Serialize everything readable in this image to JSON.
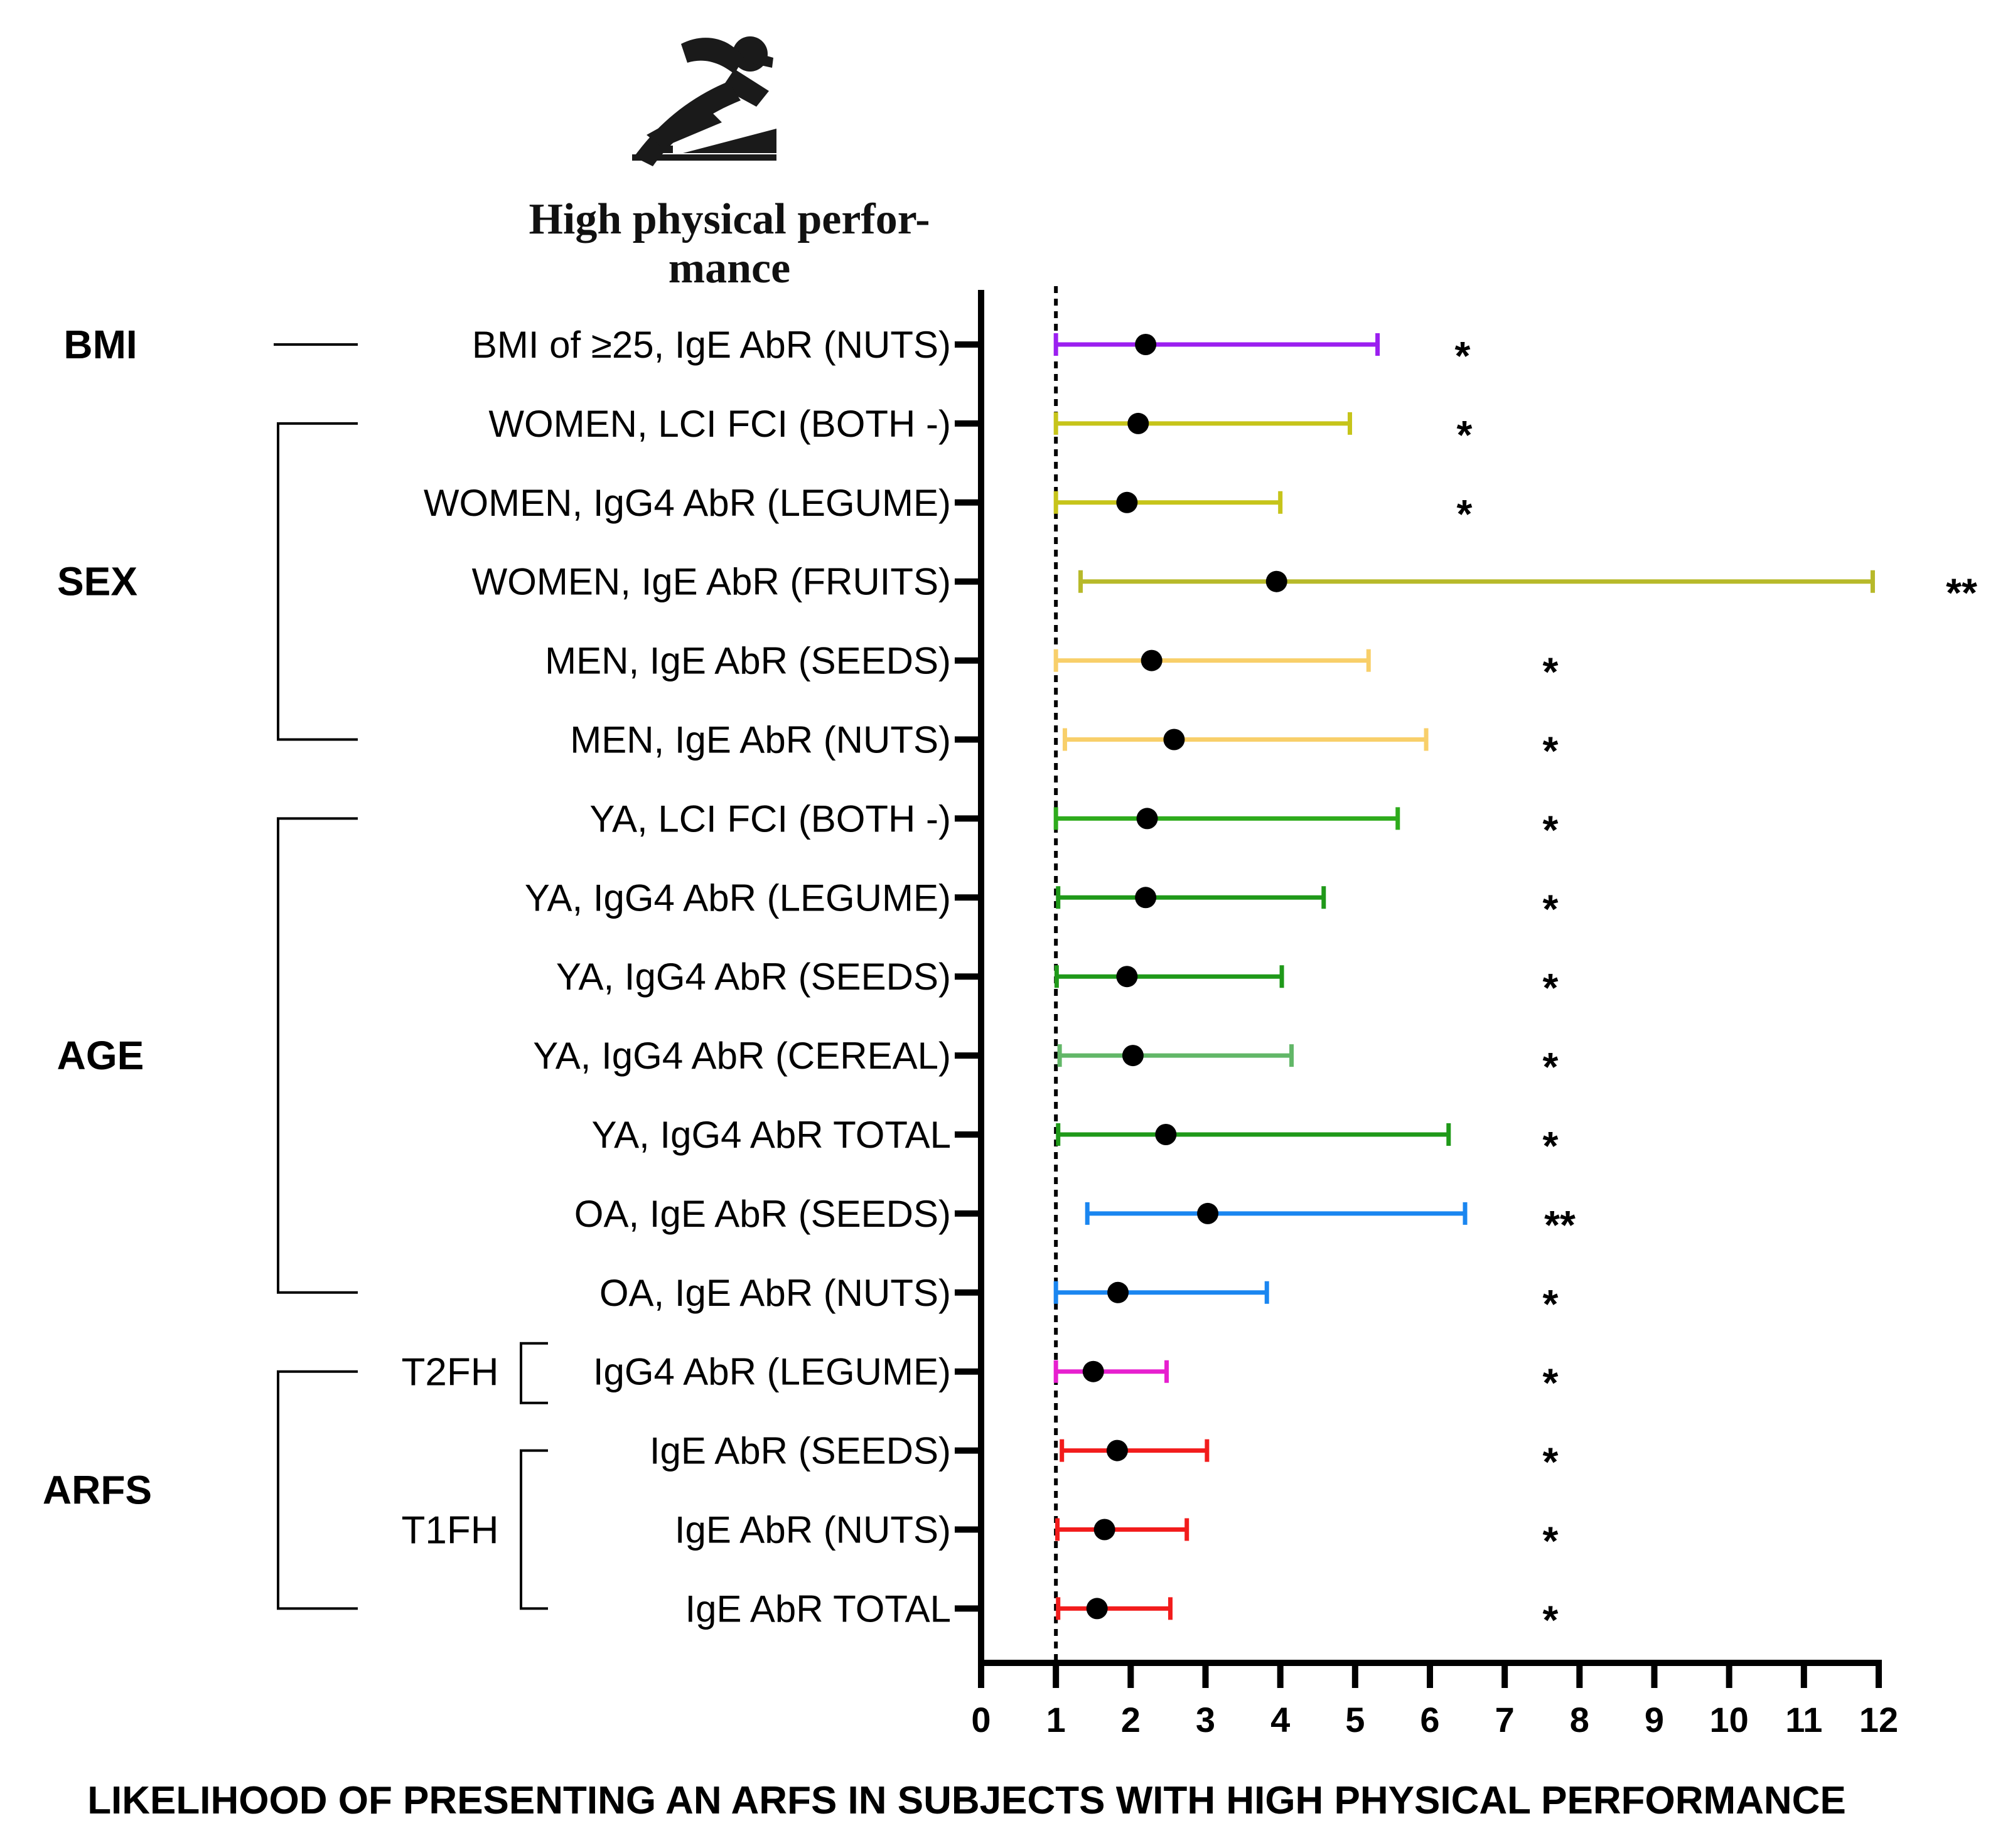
{
  "chart_data": {
    "type": "forest",
    "title": "High physical performance",
    "title_lines": [
      "High physical perfor-",
      "mance"
    ],
    "xlabel": "LIKELIHOOD OF PRESENTING AN ARFS IN SUBJECTS WITH HIGH PHYSICAL PERFORMANCE",
    "xlim": [
      0,
      12
    ],
    "xticks": [
      "0",
      "1",
      "2",
      "3",
      "4",
      "5",
      "6",
      "7",
      "8",
      "9",
      "10",
      "11",
      "12"
    ],
    "reference_line": 1,
    "groups": [
      {
        "label": "BMI",
        "first_row": 0,
        "last_row": 0
      },
      {
        "label": "SEX",
        "first_row": 1,
        "last_row": 5
      },
      {
        "label": "AGE",
        "first_row": 6,
        "last_row": 12
      },
      {
        "label": "ARFS",
        "first_row": 13,
        "last_row": 16
      }
    ],
    "subgroups": [
      {
        "label": "T2FH",
        "first_row": 13,
        "last_row": 13
      },
      {
        "label": "T1FH",
        "first_row": 14,
        "last_row": 16
      }
    ],
    "rows": [
      {
        "label": "BMI of ≥25, IgE AbR (NUTS)",
        "estimate": 2.2,
        "lower": 1.0,
        "upper": 5.3,
        "significance": "*",
        "color": "#9b1ff0"
      },
      {
        "label": "WOMEN, LCI FCI (BOTH -)",
        "estimate": 2.1,
        "lower": 1.0,
        "upper": 4.93,
        "significance": "*",
        "color": "#c6c41a"
      },
      {
        "label": "WOMEN, IgG4 AbR (LEGUME)",
        "estimate": 1.95,
        "lower": 1.0,
        "upper": 4.0,
        "significance": "*",
        "color": "#c6c41a"
      },
      {
        "label": "WOMEN, IgE AbR (FRUITS)",
        "estimate": 3.95,
        "lower": 1.33,
        "upper": 11.92,
        "significance": "**",
        "color": "#b7b92a"
      },
      {
        "label": "MEN, IgE AbR (SEEDS)",
        "estimate": 2.28,
        "lower": 1.0,
        "upper": 5.18,
        "significance": "*",
        "color": "#f8cf6a"
      },
      {
        "label": "MEN, IgE AbR (NUTS)",
        "estimate": 2.58,
        "lower": 1.12,
        "upper": 5.95,
        "significance": "*",
        "color": "#f8cf6a"
      },
      {
        "label": "YA, LCI FCI (BOTH -)",
        "estimate": 2.22,
        "lower": 1.0,
        "upper": 5.57,
        "significance": "*",
        "color": "#2eab1c"
      },
      {
        "label": "YA, IgG4 AbR (LEGUME)",
        "estimate": 2.2,
        "lower": 1.03,
        "upper": 4.58,
        "significance": "*",
        "color": "#1f9919"
      },
      {
        "label": "YA, IgG4 AbR (SEEDS)",
        "estimate": 1.95,
        "lower": 1.01,
        "upper": 4.02,
        "significance": "*",
        "color": "#1f9919"
      },
      {
        "label": "YA, IgG4 AbR (CEREAL)",
        "estimate": 2.03,
        "lower": 1.05,
        "upper": 4.15,
        "significance": "*",
        "color": "#62b768"
      },
      {
        "label": "YA, IgG4 AbR TOTAL",
        "estimate": 2.47,
        "lower": 1.03,
        "upper": 6.25,
        "significance": "*",
        "color": "#1f9919"
      },
      {
        "label": "OA, IgE AbR (SEEDS)",
        "estimate": 3.03,
        "lower": 1.42,
        "upper": 6.47,
        "significance": "**",
        "color": "#1a86f0"
      },
      {
        "label": "OA, IgE AbR (NUTS)",
        "estimate": 1.83,
        "lower": 1.0,
        "upper": 3.82,
        "significance": "*",
        "color": "#1a86f0"
      },
      {
        "label": "IgG4 AbR (LEGUME)",
        "estimate": 1.5,
        "lower": 1.0,
        "upper": 2.48,
        "significance": "*",
        "color": "#e71fcf"
      },
      {
        "label": "IgE AbR (SEEDS)",
        "estimate": 1.82,
        "lower": 1.08,
        "upper": 3.02,
        "significance": "*",
        "color": "#f21c1c"
      },
      {
        "label": "IgE AbR (NUTS)",
        "estimate": 1.65,
        "lower": 1.02,
        "upper": 2.75,
        "significance": "*",
        "color": "#f21c1c"
      },
      {
        "label": "IgE AbR TOTAL",
        "estimate": 1.55,
        "lower": 1.03,
        "upper": 2.53,
        "significance": "*",
        "color": "#f21c1c"
      }
    ]
  },
  "icon": "runner-icon"
}
